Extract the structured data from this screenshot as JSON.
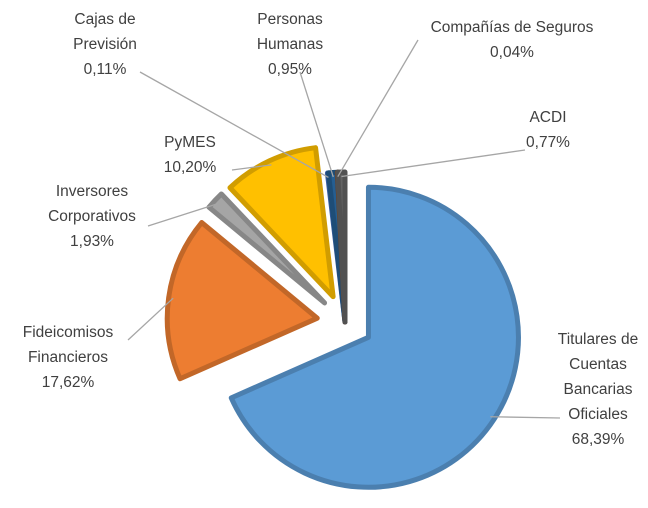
{
  "chart_data": {
    "type": "pie",
    "categories": [
      "Titulares de Cuentas Bancarias Oficiales",
      "Fideicomisos Financieros",
      "Inversores Corporativos",
      "PyMES",
      "Cajas de Previsión",
      "Personas Humanas",
      "Compañías de Seguros",
      "ACDI"
    ],
    "values": [
      68.39,
      17.62,
      1.93,
      10.2,
      0.11,
      0.95,
      0.04,
      0.77
    ],
    "value_labels": [
      "68,39%",
      "17,62%",
      "1,93%",
      "10,20%",
      "0,11%",
      "0,95%",
      "0,04%",
      "0,77%"
    ],
    "colors": [
      "#5b9bd5",
      "#ed7d31",
      "#a5a5a5",
      "#ffc000",
      "#4472c4",
      "#255e91",
      "#9e480e",
      "#636363"
    ],
    "explode": [
      true,
      true,
      true,
      true,
      false,
      false,
      false,
      false
    ]
  }
}
